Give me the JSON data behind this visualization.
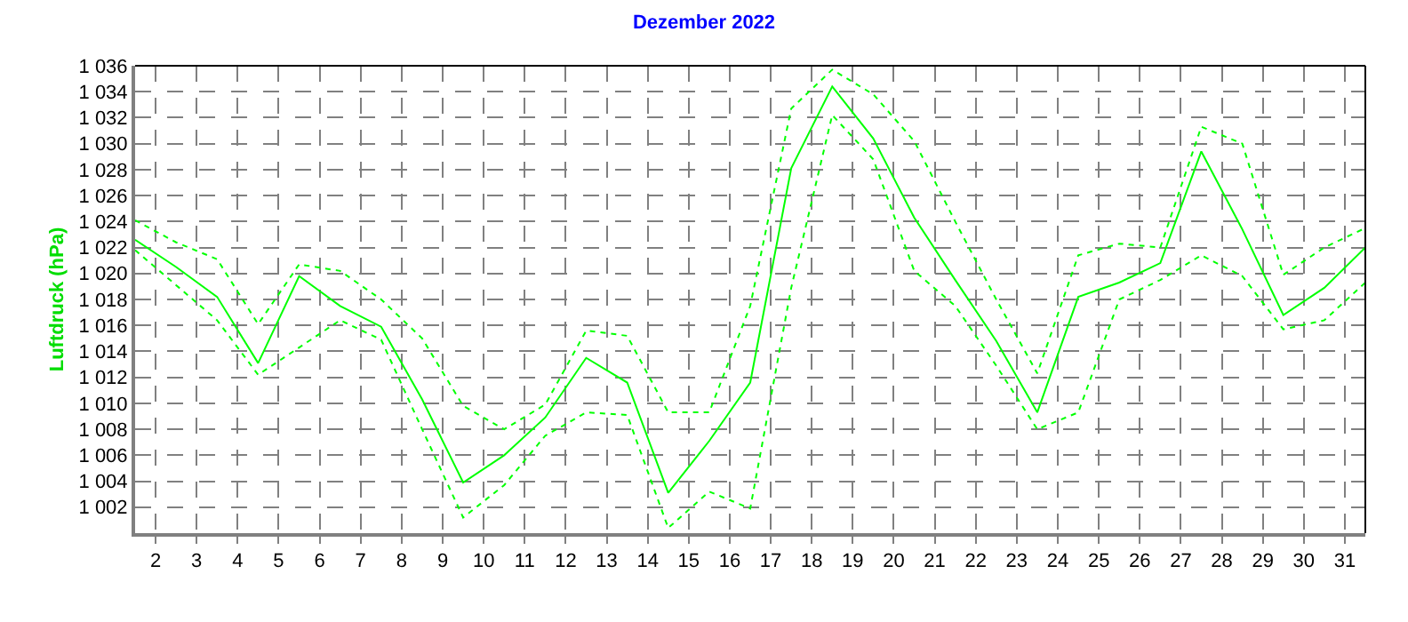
{
  "chart_data": {
    "type": "line",
    "title": "Dezember 2022",
    "ylabel": "Luftdruck (hPa)",
    "x": [
      1.5,
      2.5,
      3.5,
      4.5,
      5.5,
      6.5,
      7.5,
      8.5,
      9.5,
      10.5,
      11.5,
      12.5,
      13.5,
      14.5,
      15.5,
      16.5,
      17.5,
      18.5,
      19.5,
      20.5,
      21.5,
      22.5,
      23.5,
      24.5,
      25.5,
      26.5,
      27.5,
      28.5,
      29.5,
      30.5,
      31.5
    ],
    "series": [
      {
        "color": "#00ff00",
        "line_style": "dotted",
        "values": [
          1024.1,
          1022.4,
          1021.1,
          1016.1,
          1020.7,
          1020.2,
          1018.0,
          1015.0,
          1009.8,
          1008.0,
          1009.9,
          1015.6,
          1015.2,
          1009.3,
          1009.3,
          1017.5,
          1032.7,
          1035.7,
          1033.8,
          1030.2,
          1024.0,
          1018.0,
          1012.3,
          1021.4,
          1022.3,
          1022.0,
          1031.3,
          1030.0,
          1019.9,
          1022.0,
          1023.5
        ]
      },
      {
        "color": "#00ff00",
        "line_style": "solid",
        "values": [
          1022.6,
          1020.5,
          1018.2,
          1013.1,
          1019.8,
          1017.5,
          1015.9,
          1010.3,
          1003.9,
          1006.0,
          1008.9,
          1013.5,
          1011.6,
          1003.1,
          1007.1,
          1011.6,
          1028.1,
          1034.4,
          1030.4,
          1024.3,
          1019.5,
          1014.8,
          1009.3,
          1018.2,
          1019.3,
          1020.8,
          1029.4,
          1023.4,
          1016.8,
          1018.9,
          1022.0
        ]
      },
      {
        "color": "#00ff00",
        "line_style": "dotted",
        "values": [
          1021.8,
          1019.1,
          1016.4,
          1012.2,
          1014.3,
          1016.4,
          1014.9,
          1008.0,
          1001.2,
          1003.7,
          1007.5,
          1009.3,
          1009.1,
          1000.4,
          1003.2,
          1001.9,
          1018.9,
          1032.2,
          1028.8,
          1020.2,
          1017.5,
          1012.9,
          1008.0,
          1009.3,
          1018.0,
          1019.5,
          1021.4,
          1019.8,
          1015.7,
          1016.4,
          1019.3
        ]
      }
    ],
    "xlim": [
      1.5,
      31.5
    ],
    "xticks": [
      2,
      3,
      4,
      5,
      6,
      7,
      8,
      9,
      10,
      11,
      12,
      13,
      14,
      15,
      16,
      17,
      18,
      19,
      20,
      21,
      22,
      23,
      24,
      25,
      26,
      27,
      28,
      29,
      30,
      31
    ],
    "ylim": [
      1000,
      1036
    ],
    "yticks": [
      {
        "value": 1002,
        "label": "1 002"
      },
      {
        "value": 1004,
        "label": "1 004"
      },
      {
        "value": 1006,
        "label": "1 006"
      },
      {
        "value": 1008,
        "label": "1 008"
      },
      {
        "value": 1010,
        "label": "1 010"
      },
      {
        "value": 1012,
        "label": "1 012"
      },
      {
        "value": 1014,
        "label": "1 014"
      },
      {
        "value": 1016,
        "label": "1 016"
      },
      {
        "value": 1018,
        "label": "1 018"
      },
      {
        "value": 1020,
        "label": "1 020"
      },
      {
        "value": 1022,
        "label": "1 022"
      },
      {
        "value": 1024,
        "label": "1 024"
      },
      {
        "value": 1026,
        "label": "1 026"
      },
      {
        "value": 1028,
        "label": "1 028"
      },
      {
        "value": 1030,
        "label": "1 030"
      },
      {
        "value": 1032,
        "label": "1 032"
      },
      {
        "value": 1034,
        "label": "1 034"
      },
      {
        "value": 1036,
        "label": "1 036"
      }
    ],
    "grid": true,
    "marker": "none"
  }
}
